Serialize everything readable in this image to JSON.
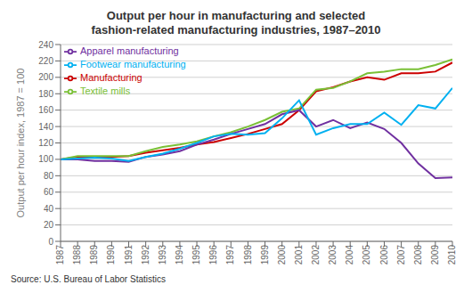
{
  "chart_data": {
    "type": "line",
    "title": "Output per hour in manufacturing and selected\nfashion-related manufacturing industries, 1987–2010",
    "y_label": "Output per hour index, 1987 = 100",
    "annotations": [
      "Source: U.S. Bureau of Labor Statistics"
    ],
    "x": [
      1987,
      1988,
      1989,
      1990,
      1991,
      1992,
      1993,
      1994,
      1995,
      1996,
      1997,
      1998,
      1999,
      2000,
      2001,
      2002,
      2003,
      2004,
      2005,
      2006,
      2007,
      2008,
      2009,
      2010
    ],
    "xlim": [
      1987,
      2010
    ],
    "xticks": [
      1987,
      1988,
      1989,
      1990,
      1991,
      1992,
      1993,
      1994,
      1995,
      1996,
      1997,
      1998,
      1999,
      2000,
      2001,
      2002,
      2003,
      2004,
      2005,
      2006,
      2007,
      2008,
      2009,
      2010
    ],
    "ylim": [
      0,
      240
    ],
    "yticks": [
      0,
      20,
      40,
      60,
      80,
      100,
      120,
      140,
      160,
      180,
      200,
      220,
      240
    ],
    "grid": "y",
    "legend": "upper left",
    "series": [
      {
        "name": "Manufacturing",
        "color": "#cc0000",
        "values": [
          100,
          103,
          103,
          103,
          104,
          108,
          111,
          114,
          118,
          121,
          126,
          131,
          137,
          143,
          160,
          183,
          188,
          195,
          200,
          197,
          205,
          205,
          207,
          218
        ]
      },
      {
        "name": "Textile mills",
        "color": "#7ac036",
        "values": [
          100,
          104,
          104,
          104,
          104,
          110,
          115,
          118,
          122,
          128,
          133,
          140,
          148,
          158,
          162,
          185,
          187,
          195,
          205,
          207,
          210,
          210,
          215,
          222
        ]
      },
      {
        "name": "Apparel manufacturing",
        "color": "#7030a0",
        "values": [
          100,
          100,
          98,
          98,
          97,
          103,
          106,
          110,
          118,
          124,
          131,
          137,
          143,
          155,
          160,
          140,
          148,
          138,
          145,
          137,
          120,
          95,
          77,
          78
        ]
      },
      {
        "name": "Footwear manufacturing",
        "color": "#00b0f0",
        "values": [
          100,
          101,
          102,
          101,
          98,
          103,
          107,
          113,
          120,
          128,
          131,
          130,
          132,
          150,
          172,
          130,
          138,
          143,
          143,
          157,
          142,
          166,
          162,
          187
        ]
      }
    ]
  }
}
